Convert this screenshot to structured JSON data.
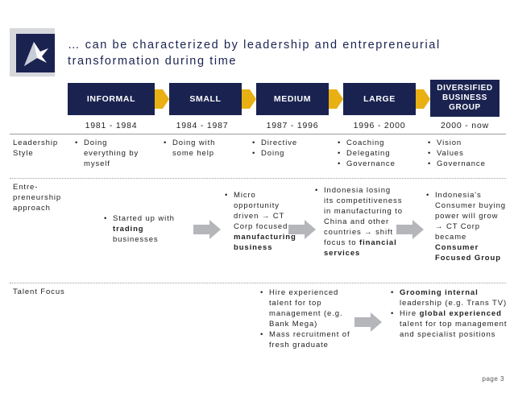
{
  "header": {
    "title": "… can be characterized by leadership and entrepreneurial transformation during time"
  },
  "phases": [
    {
      "label": "INFORMAL",
      "years": "1981 - 1984"
    },
    {
      "label": "SMALL",
      "years": "1984 - 1987"
    },
    {
      "label": "MEDIUM",
      "years": "1987 - 1996"
    },
    {
      "label": "LARGE",
      "years": "1996 - 2000"
    },
    {
      "label": "DIVERSIFIED BUSINESS GROUP",
      "years": "2000 - now"
    }
  ],
  "colors": {
    "navy": "#1a2350",
    "gold": "#e8b012",
    "gray_arrow": "#b4b6ba"
  },
  "rows": {
    "leadership": {
      "label": "Leadership Style",
      "cells": [
        [
          "Doing everything by myself"
        ],
        [
          "Doing with some help"
        ],
        [
          "Directive",
          "Doing"
        ],
        [
          "Coaching",
          "Delegating",
          "Governance"
        ],
        [
          "Vision",
          "Values",
          "Governance"
        ]
      ]
    },
    "entrepreneurship": {
      "label": "Entre-preneurship approach",
      "c1": {
        "pre": "Started up with ",
        "bold": "trading",
        "post": " businesses"
      },
      "c2": {
        "pre": "Micro opportunity driven → CT Corp focused on ",
        "bold": "manufacturing business"
      },
      "c3": {
        "pre": "Indonesia losing its competitiveness in manufacturing to China and other countries → shift focus to ",
        "bold1": "financial",
        "bold2": " services"
      },
      "c4": {
        "pre": "Indonesia's Consumer buying power will grow → CT Corp became ",
        "bold": "Consumer Focused Group"
      }
    },
    "talent": {
      "label": "Talent Focus",
      "c1": [
        "Hire experienced talent for top management (e.g. Bank Mega)",
        "Mass recruitment of fresh graduate"
      ],
      "c2a": {
        "bold": "Grooming internal",
        "post": " leadership (e.g. Trans TV)"
      },
      "c2b": {
        "pre": "Hire ",
        "bold": "global experienced",
        "post": " talent for top management and specialist positions"
      }
    }
  },
  "footer": {
    "page": "page 3"
  }
}
